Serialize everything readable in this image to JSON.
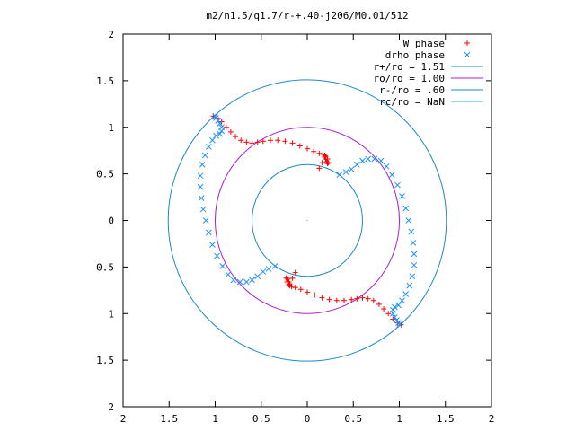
{
  "chart_data": {
    "type": "scatter",
    "title": "m2/n1.5/q1.7/r-+.40-j206/M0.01/512",
    "xlabel": "",
    "ylabel": "",
    "xlim": [
      -2,
      2
    ],
    "ylim": [
      -2,
      2
    ],
    "grid": false,
    "legend_position": "top-right",
    "x_ticks": [
      -2,
      -1.5,
      -1,
      -0.5,
      0,
      0.5,
      1,
      1.5,
      2
    ],
    "y_ticks": [
      -2,
      -1.5,
      -1,
      -0.5,
      0,
      0.5,
      1,
      1.5,
      2
    ],
    "x_tick_labels": [
      "2",
      "1.5",
      "1",
      "0.5",
      "0",
      "0.5",
      "1",
      "1.5",
      "2"
    ],
    "y_tick_labels": [
      "2",
      "1.5",
      "1",
      "0.5",
      "0",
      "0.5",
      "1",
      "1.5",
      "2"
    ],
    "series": [
      {
        "name": "W phase",
        "kind": "points",
        "marker": "plus",
        "color": "#ff0000",
        "x": [
          -1.02,
          -0.98,
          -0.93,
          -0.88,
          -0.83,
          -0.78,
          -0.72,
          -0.66,
          -0.6,
          -0.54,
          -0.48,
          -0.4,
          -0.32,
          -0.24,
          -0.16,
          -0.08,
          0.0,
          0.07,
          0.13,
          0.17,
          0.19,
          0.2,
          0.2,
          0.21,
          0.22,
          0.23,
          0.22,
          0.19,
          0.16,
          0.13,
          1.02,
          0.98,
          0.93,
          0.88,
          0.83,
          0.78,
          0.72,
          0.66,
          0.6,
          0.54,
          0.48,
          0.4,
          0.32,
          0.24,
          0.16,
          0.08,
          0.0,
          -0.07,
          -0.13,
          -0.17,
          -0.19,
          -0.2,
          -0.2,
          -0.21,
          -0.22,
          -0.23,
          -0.22,
          -0.19,
          -0.16,
          -0.13
        ],
        "y": [
          1.12,
          1.1,
          1.06,
          1.0,
          0.95,
          0.9,
          0.86,
          0.84,
          0.83,
          0.84,
          0.85,
          0.86,
          0.86,
          0.85,
          0.83,
          0.8,
          0.77,
          0.74,
          0.72,
          0.71,
          0.7,
          0.69,
          0.66,
          0.63,
          0.61,
          0.62,
          0.66,
          0.68,
          0.62,
          0.56,
          -1.12,
          -1.1,
          -1.06,
          -1.0,
          -0.95,
          -0.9,
          -0.86,
          -0.84,
          -0.83,
          -0.84,
          -0.85,
          -0.86,
          -0.86,
          -0.85,
          -0.83,
          -0.8,
          -0.77,
          -0.74,
          -0.72,
          -0.71,
          -0.7,
          -0.69,
          -0.66,
          -0.63,
          -0.61,
          -0.62,
          -0.66,
          -0.68,
          -0.62,
          -0.56
        ]
      },
      {
        "name": "drho phase",
        "kind": "points",
        "marker": "cross",
        "color": "#1e90ff",
        "x": [
          0.35,
          0.42,
          0.48,
          0.54,
          0.6,
          0.66,
          0.73,
          0.8,
          0.86,
          0.92,
          0.98,
          1.03,
          1.07,
          1.1,
          1.13,
          1.15,
          1.16,
          1.16,
          1.14,
          1.11,
          1.07,
          1.03,
          0.99,
          0.95,
          0.93,
          0.93,
          0.95,
          0.97,
          0.99,
          1.0,
          -0.35,
          -0.42,
          -0.48,
          -0.54,
          -0.6,
          -0.66,
          -0.73,
          -0.8,
          -0.86,
          -0.92,
          -0.98,
          -1.03,
          -1.07,
          -1.1,
          -1.13,
          -1.15,
          -1.16,
          -1.16,
          -1.14,
          -1.11,
          -1.07,
          -1.03,
          -0.99,
          -0.95,
          -0.93,
          -0.93,
          -0.95,
          -0.97,
          -0.99,
          -1.0
        ],
        "y": [
          0.49,
          0.52,
          0.55,
          0.6,
          0.64,
          0.66,
          0.66,
          0.64,
          0.58,
          0.49,
          0.38,
          0.26,
          0.13,
          0.0,
          -0.12,
          -0.24,
          -0.36,
          -0.48,
          -0.6,
          -0.7,
          -0.79,
          -0.86,
          -0.91,
          -0.93,
          -0.96,
          -1.0,
          -1.04,
          -1.07,
          -1.1,
          -1.12,
          -0.49,
          -0.52,
          -0.55,
          -0.6,
          -0.64,
          -0.66,
          -0.66,
          -0.64,
          -0.58,
          -0.49,
          -0.38,
          -0.26,
          -0.13,
          0.0,
          0.12,
          0.24,
          0.36,
          0.48,
          0.6,
          0.7,
          0.79,
          0.86,
          0.91,
          0.93,
          0.96,
          1.0,
          1.04,
          1.07,
          1.1,
          1.12
        ]
      },
      {
        "name": "r+/ro = 1.51",
        "kind": "circle",
        "radius": 1.51,
        "color": "#1e88c8"
      },
      {
        "name": "ro/ro = 1.00",
        "kind": "circle",
        "radius": 1.0,
        "color": "#aa22cc"
      },
      {
        "name": "r-/ro = .60",
        "kind": "circle",
        "radius": 0.6,
        "color": "#1e88c8"
      },
      {
        "name": "rc/ro = NaN",
        "kind": "line",
        "color": "#00c8e0"
      }
    ]
  }
}
